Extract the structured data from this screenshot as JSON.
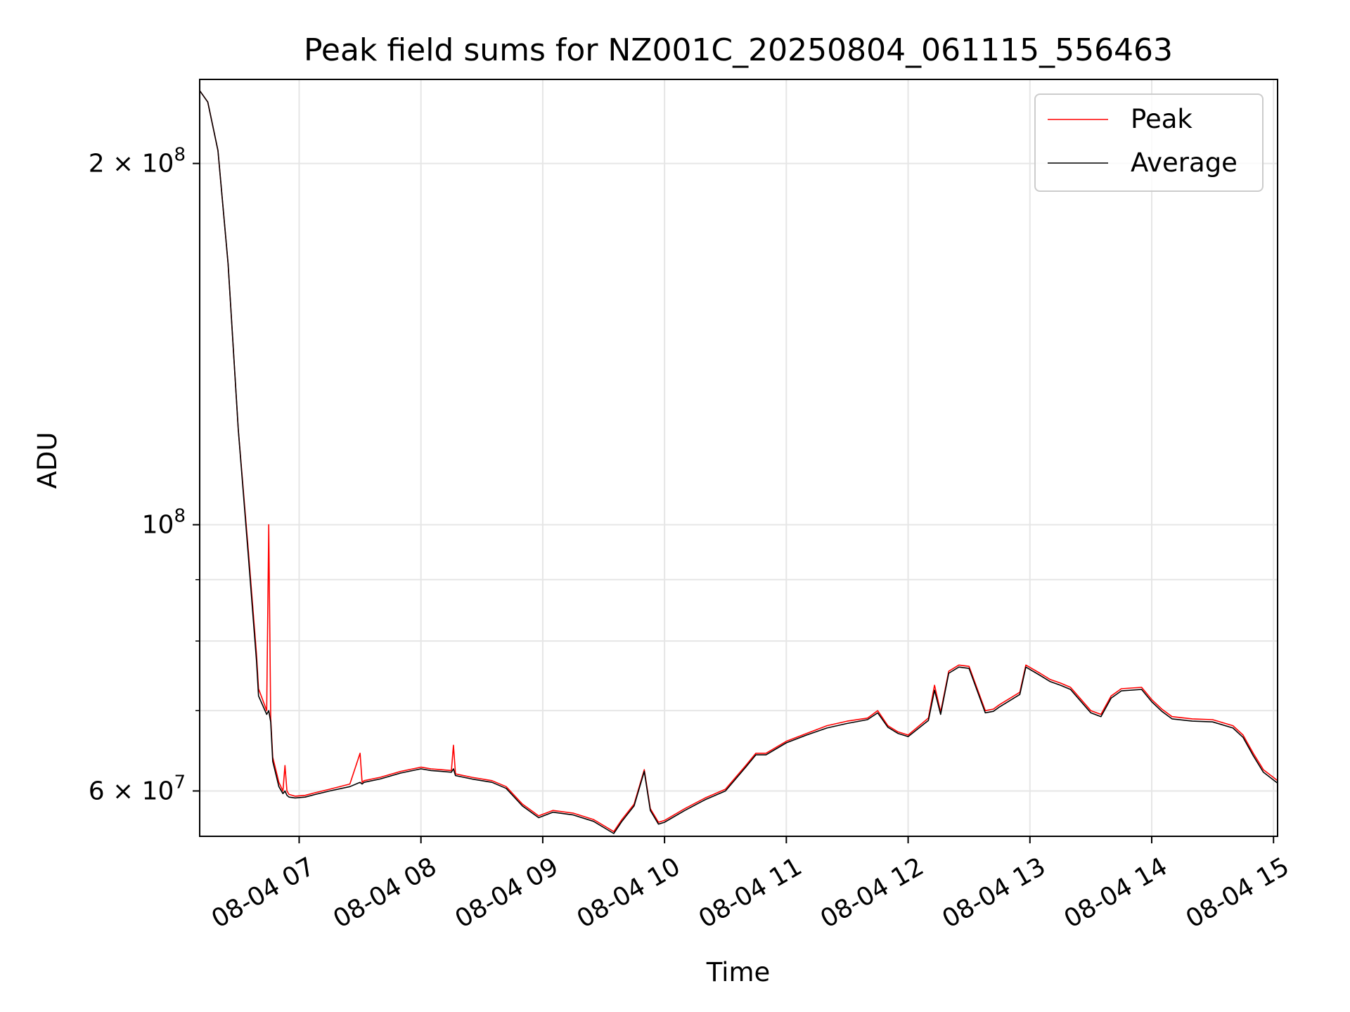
{
  "chart_data": {
    "type": "line",
    "title": "Peak field sums for NZ001C_20250804_061115_556463",
    "xlabel": "Time",
    "ylabel": "ADU",
    "x_scale": "time",
    "y_scale": "log",
    "xlim": [
      "2025-08-04 06:11",
      "2025-08-04 15:02"
    ],
    "ylim": [
      55000000,
      235000000
    ],
    "grid": true,
    "legend_position": "top-right",
    "x_ticks": [
      {
        "value": "2025-08-04 07:00",
        "label": "08-04 07"
      },
      {
        "value": "2025-08-04 08:00",
        "label": "08-04 08"
      },
      {
        "value": "2025-08-04 09:00",
        "label": "08-04 09"
      },
      {
        "value": "2025-08-04 10:00",
        "label": "08-04 10"
      },
      {
        "value": "2025-08-04 11:00",
        "label": "08-04 11"
      },
      {
        "value": "2025-08-04 12:00",
        "label": "08-04 12"
      },
      {
        "value": "2025-08-04 13:00",
        "label": "08-04 13"
      },
      {
        "value": "2025-08-04 14:00",
        "label": "08-04 14"
      },
      {
        "value": "2025-08-04 15:00",
        "label": "08-04 15"
      }
    ],
    "y_major_ticks": [
      {
        "value": 60000000,
        "mantissa": "6 × 10",
        "exp": "7"
      },
      {
        "value": 100000000,
        "mantissa": "10",
        "exp": "8"
      },
      {
        "value": 200000000,
        "mantissa": "2 × 10",
        "exp": "8"
      }
    ],
    "y_minor_ticks": [
      70000000,
      80000000,
      90000000
    ],
    "series": [
      {
        "name": "Peak",
        "color": "#ff0000",
        "x": [
          "2025-08-04 06:11",
          "2025-08-04 06:15",
          "2025-08-04 06:20",
          "2025-08-04 06:25",
          "2025-08-04 06:30",
          "2025-08-04 06:35",
          "2025-08-04 06:39",
          "2025-08-04 06:40",
          "2025-08-04 06:44",
          "2025-08-04 06:45",
          "2025-08-04 06:46",
          "2025-08-04 06:47",
          "2025-08-04 06:49",
          "2025-08-04 06:50",
          "2025-08-04 06:52",
          "2025-08-04 06:53",
          "2025-08-04 06:54",
          "2025-08-04 06:55",
          "2025-08-04 06:58",
          "2025-08-04 07:03",
          "2025-08-04 07:08",
          "2025-08-04 07:15",
          "2025-08-04 07:25",
          "2025-08-04 07:30",
          "2025-08-04 07:31",
          "2025-08-04 07:32",
          "2025-08-04 07:40",
          "2025-08-04 07:50",
          "2025-08-04 08:00",
          "2025-08-04 08:05",
          "2025-08-04 08:10",
          "2025-08-04 08:15",
          "2025-08-04 08:16",
          "2025-08-04 08:17",
          "2025-08-04 08:25",
          "2025-08-04 08:35",
          "2025-08-04 08:42",
          "2025-08-04 08:50",
          "2025-08-04 08:58",
          "2025-08-04 09:05",
          "2025-08-04 09:15",
          "2025-08-04 09:25",
          "2025-08-04 09:35",
          "2025-08-04 09:39",
          "2025-08-04 09:45",
          "2025-08-04 09:50",
          "2025-08-04 09:53",
          "2025-08-04 09:57",
          "2025-08-04 10:00",
          "2025-08-04 10:10",
          "2025-08-04 10:20",
          "2025-08-04 10:30",
          "2025-08-04 10:40",
          "2025-08-04 10:45",
          "2025-08-04 10:50",
          "2025-08-04 11:00",
          "2025-08-04 11:10",
          "2025-08-04 11:20",
          "2025-08-04 11:30",
          "2025-08-04 11:40",
          "2025-08-04 11:45",
          "2025-08-04 11:50",
          "2025-08-04 11:55",
          "2025-08-04 12:00",
          "2025-08-04 12:10",
          "2025-08-04 12:13",
          "2025-08-04 12:16",
          "2025-08-04 12:20",
          "2025-08-04 12:25",
          "2025-08-04 12:30",
          "2025-08-04 12:38",
          "2025-08-04 12:42",
          "2025-08-04 12:45",
          "2025-08-04 12:55",
          "2025-08-04 12:58",
          "2025-08-04 13:05",
          "2025-08-04 13:10",
          "2025-08-04 13:15",
          "2025-08-04 13:20",
          "2025-08-04 13:30",
          "2025-08-04 13:35",
          "2025-08-04 13:40",
          "2025-08-04 13:45",
          "2025-08-04 13:55",
          "2025-08-04 14:00",
          "2025-08-04 14:05",
          "2025-08-04 14:10",
          "2025-08-04 14:20",
          "2025-08-04 14:30",
          "2025-08-04 14:40",
          "2025-08-04 14:45",
          "2025-08-04 14:50",
          "2025-08-04 14:55",
          "2025-08-04 15:02"
        ],
        "values": [
          230000000,
          225000000,
          205000000,
          165000000,
          120000000,
          95000000,
          78000000,
          73000000,
          70000000,
          100000000,
          69000000,
          64000000,
          62000000,
          61000000,
          60000000,
          63000000,
          60000000,
          59600000,
          59400000,
          59500000,
          59800000,
          60200000,
          60800000,
          64500000,
          61000000,
          61200000,
          61600000,
          62300000,
          62800000,
          62600000,
          62500000,
          62400000,
          65500000,
          62000000,
          61600000,
          61200000,
          60500000,
          58500000,
          57200000,
          57800000,
          57500000,
          56800000,
          55500000,
          56800000,
          58500000,
          62500000,
          58000000,
          56500000,
          56700000,
          58000000,
          59200000,
          60200000,
          63000000,
          64500000,
          64500000,
          66000000,
          67000000,
          68000000,
          68600000,
          69000000,
          70000000,
          68000000,
          67200000,
          66800000,
          69000000,
          73500000,
          69800000,
          75500000,
          76400000,
          76200000,
          70000000,
          70200000,
          70800000,
          72500000,
          76400000,
          75200000,
          74300000,
          73800000,
          73200000,
          70000000,
          69500000,
          72000000,
          73000000,
          73200000,
          71500000,
          70200000,
          69200000,
          68900000,
          68800000,
          68000000,
          66800000,
          64500000,
          62500000,
          61200000
        ]
      },
      {
        "name": "Average",
        "color": "#000000",
        "x": [
          "2025-08-04 06:11",
          "2025-08-04 06:15",
          "2025-08-04 06:20",
          "2025-08-04 06:25",
          "2025-08-04 06:30",
          "2025-08-04 06:35",
          "2025-08-04 06:39",
          "2025-08-04 06:40",
          "2025-08-04 06:44",
          "2025-08-04 06:45",
          "2025-08-04 06:46",
          "2025-08-04 06:47",
          "2025-08-04 06:49",
          "2025-08-04 06:50",
          "2025-08-04 06:52",
          "2025-08-04 06:53",
          "2025-08-04 06:54",
          "2025-08-04 06:55",
          "2025-08-04 06:58",
          "2025-08-04 07:03",
          "2025-08-04 07:08",
          "2025-08-04 07:15",
          "2025-08-04 07:25",
          "2025-08-04 07:30",
          "2025-08-04 07:31",
          "2025-08-04 07:32",
          "2025-08-04 07:40",
          "2025-08-04 07:50",
          "2025-08-04 08:00",
          "2025-08-04 08:05",
          "2025-08-04 08:10",
          "2025-08-04 08:15",
          "2025-08-04 08:16",
          "2025-08-04 08:17",
          "2025-08-04 08:25",
          "2025-08-04 08:35",
          "2025-08-04 08:42",
          "2025-08-04 08:50",
          "2025-08-04 08:58",
          "2025-08-04 09:05",
          "2025-08-04 09:15",
          "2025-08-04 09:25",
          "2025-08-04 09:35",
          "2025-08-04 09:39",
          "2025-08-04 09:45",
          "2025-08-04 09:50",
          "2025-08-04 09:53",
          "2025-08-04 09:57",
          "2025-08-04 10:00",
          "2025-08-04 10:10",
          "2025-08-04 10:20",
          "2025-08-04 10:30",
          "2025-08-04 10:40",
          "2025-08-04 10:45",
          "2025-08-04 10:50",
          "2025-08-04 11:00",
          "2025-08-04 11:10",
          "2025-08-04 11:20",
          "2025-08-04 11:30",
          "2025-08-04 11:40",
          "2025-08-04 11:45",
          "2025-08-04 11:50",
          "2025-08-04 11:55",
          "2025-08-04 12:00",
          "2025-08-04 12:10",
          "2025-08-04 12:13",
          "2025-08-04 12:16",
          "2025-08-04 12:20",
          "2025-08-04 12:25",
          "2025-08-04 12:30",
          "2025-08-04 12:38",
          "2025-08-04 12:42",
          "2025-08-04 12:45",
          "2025-08-04 12:55",
          "2025-08-04 12:58",
          "2025-08-04 13:05",
          "2025-08-04 13:10",
          "2025-08-04 13:15",
          "2025-08-04 13:20",
          "2025-08-04 13:30",
          "2025-08-04 13:35",
          "2025-08-04 13:40",
          "2025-08-04 13:45",
          "2025-08-04 13:55",
          "2025-08-04 14:00",
          "2025-08-04 14:05",
          "2025-08-04 14:10",
          "2025-08-04 14:20",
          "2025-08-04 14:30",
          "2025-08-04 14:40",
          "2025-08-04 14:45",
          "2025-08-04 14:50",
          "2025-08-04 14:55",
          "2025-08-04 15:02"
        ],
        "values": [
          230000000,
          225000000,
          205000000,
          165000000,
          120000000,
          94000000,
          77000000,
          72000000,
          69500000,
          70000000,
          68500000,
          63500000,
          61500000,
          60500000,
          59700000,
          60000000,
          59500000,
          59300000,
          59200000,
          59300000,
          59600000,
          60000000,
          60500000,
          61000000,
          60800000,
          61000000,
          61400000,
          62100000,
          62600000,
          62400000,
          62300000,
          62200000,
          62600000,
          61800000,
          61400000,
          61000000,
          60300000,
          58300000,
          57000000,
          57600000,
          57300000,
          56600000,
          55300000,
          56600000,
          58300000,
          62300000,
          57800000,
          56300000,
          56500000,
          57800000,
          59000000,
          60000000,
          62800000,
          64300000,
          64300000,
          65800000,
          66800000,
          67700000,
          68300000,
          68800000,
          69700000,
          67800000,
          67000000,
          66600000,
          68700000,
          72800000,
          69500000,
          75200000,
          76100000,
          75900000,
          69700000,
          69900000,
          70500000,
          72200000,
          76100000,
          74900000,
          74000000,
          73500000,
          72900000,
          69700000,
          69200000,
          71700000,
          72700000,
          72900000,
          71200000,
          69900000,
          68900000,
          68600000,
          68500000,
          67700000,
          66500000,
          64200000,
          62200000,
          60900000
        ]
      }
    ]
  }
}
